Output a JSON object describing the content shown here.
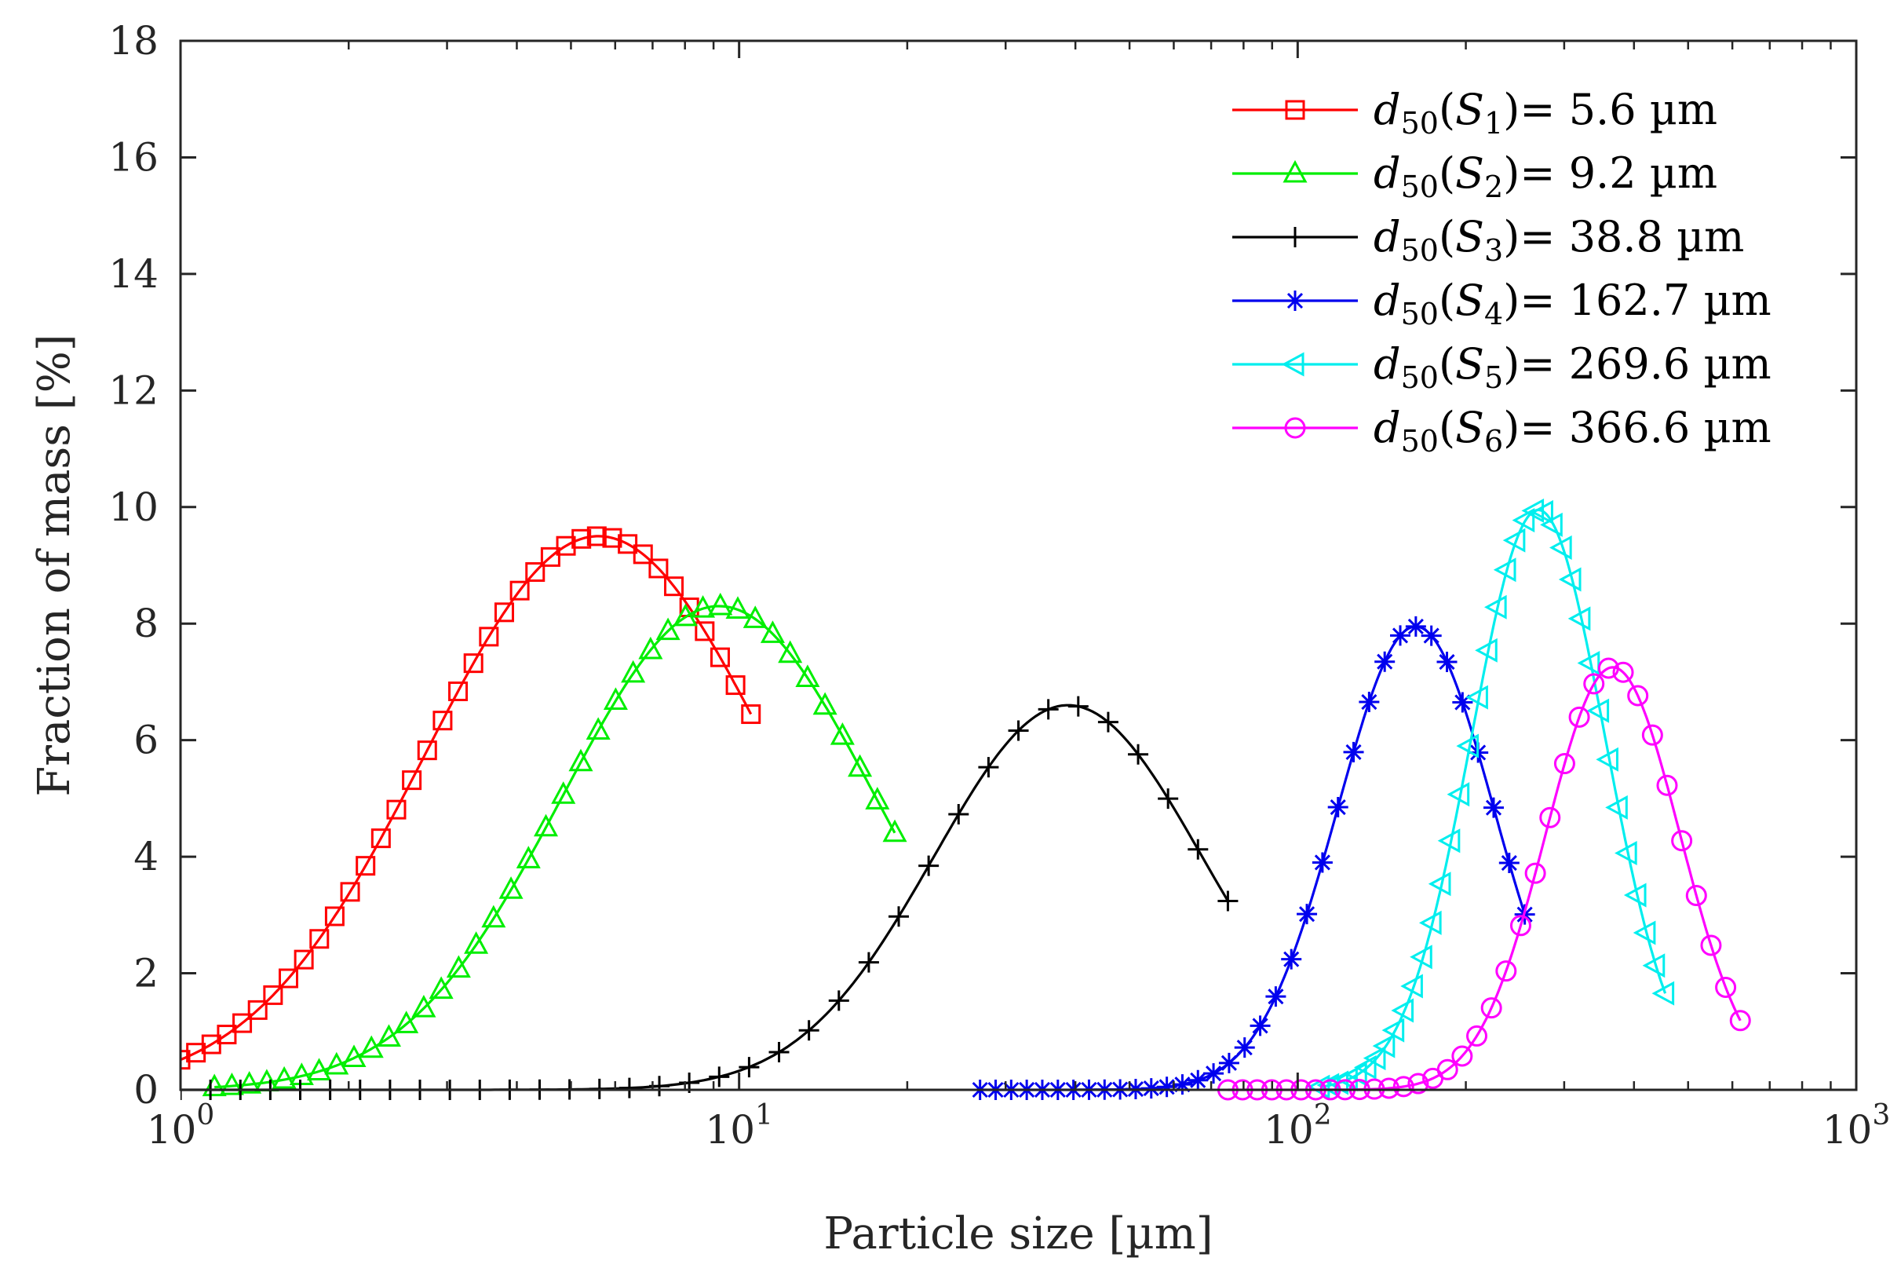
{
  "chart_data": {
    "type": "line",
    "xlabel": "Particle size [µm]",
    "ylabel": "Fraction of mass [%]",
    "xscale": "log",
    "xlim": [
      1,
      1000
    ],
    "ylim": [
      0,
      18
    ],
    "yticks": [
      0,
      2,
      4,
      6,
      8,
      10,
      12,
      14,
      16,
      18
    ],
    "xticks": [
      {
        "base": "10",
        "exp": "0",
        "value": 1
      },
      {
        "base": "10",
        "exp": "1",
        "value": 10
      },
      {
        "base": "10",
        "exp": "2",
        "value": 100
      },
      {
        "base": "10",
        "exp": "3",
        "value": 1000
      }
    ],
    "legend_position": "top-right",
    "series": [
      {
        "name": "d50(S1)= 5.6 µm",
        "symbol": "d",
        "sub": "50",
        "arg": "S",
        "argsub": "1",
        "value_text": "= 5.6  µm",
        "color": "#ff0000",
        "marker": "square",
        "mode": 5.6,
        "peak": 9.5,
        "sigma": 0.31,
        "xmin": 1.0,
        "xmax": 10.5,
        "npts": 38
      },
      {
        "name": "d50(S2)= 9.2 µm",
        "symbol": "d",
        "sub": "50",
        "arg": "S",
        "argsub": "2",
        "value_text": "= 9.2  µm",
        "color": "#00ee00",
        "marker": "triangle-up",
        "mode": 9.2,
        "peak": 8.3,
        "sigma": 0.28,
        "xmin": 1.15,
        "xmax": 19.0,
        "npts": 40
      },
      {
        "name": "d50(S3)= 38.8 µm",
        "symbol": "d",
        "sub": "50",
        "arg": "S",
        "argsub": "3",
        "value_text": "= 38.8  µm",
        "color": "#000000",
        "marker": "plus",
        "mode": 38.8,
        "peak": 6.6,
        "sigma": 0.24,
        "xmin": 1.0,
        "xmax": 75.0,
        "npts": 36
      },
      {
        "name": "d50(S4)= 162.7 µm",
        "symbol": "d",
        "sub": "50",
        "arg": "S",
        "argsub": "4",
        "value_text": "= 162.7  µm",
        "color": "#0000ee",
        "marker": "asterisk",
        "mode": 162.7,
        "peak": 7.95,
        "sigma": 0.14,
        "xmin": 27.0,
        "xmax": 255.0,
        "npts": 36
      },
      {
        "name": "d50(S5)= 269.6 µm",
        "symbol": "d",
        "sub": "50",
        "arg": "S",
        "argsub": "5",
        "value_text": "= 269.6  µm",
        "color": "#00eeee",
        "marker": "triangle-left",
        "mode": 269.6,
        "peak": 9.95,
        "sigma": 0.12,
        "xmin": 110.0,
        "xmax": 455.0,
        "npts": 38
      },
      {
        "name": "d50(S6)= 366.6 µm",
        "symbol": "d",
        "sub": "50",
        "arg": "S",
        "argsub": "6",
        "value_text": "= 366.6  µm",
        "color": "#ff00ff",
        "marker": "circle",
        "mode": 366.6,
        "peak": 7.25,
        "sigma": 0.12,
        "xmin": 75.0,
        "xmax": 620.0,
        "npts": 36
      }
    ]
  }
}
